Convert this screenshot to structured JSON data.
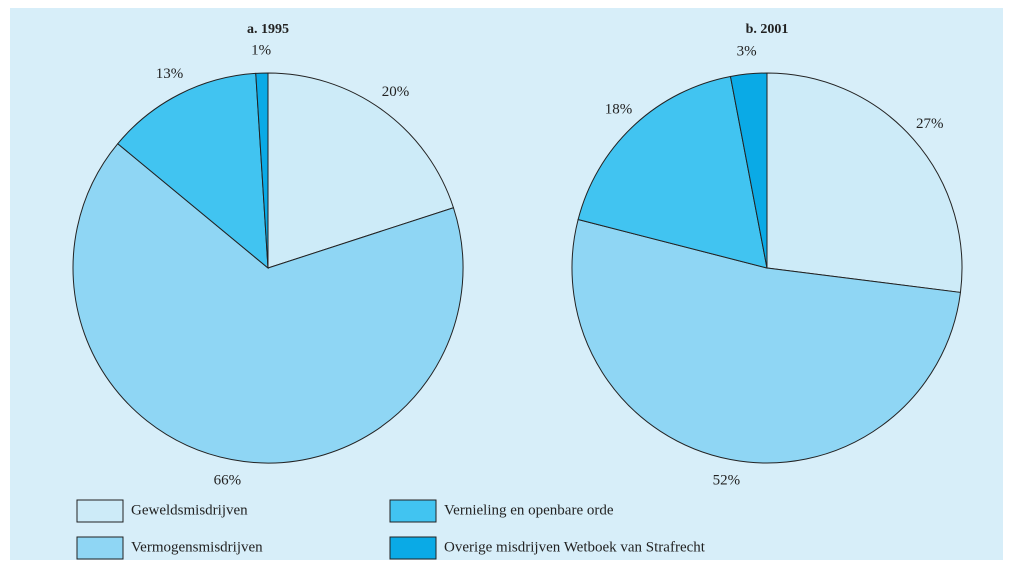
{
  "chart_data": [
    {
      "type": "pie",
      "title": "a.  1995",
      "categories": [
        "Geweldsmisdrijven",
        "Vermogensmisdrijven",
        "Vernieling en openbare orde",
        "Overige misdrijven Wetboek van Strafrecht"
      ],
      "values": [
        20,
        66,
        13,
        1
      ],
      "value_labels": [
        "20%",
        "66%",
        "13%",
        "1%"
      ],
      "colors": [
        "#cdebf8",
        "#8fd6f4",
        "#41c4f1",
        "#0aaae6"
      ]
    },
    {
      "type": "pie",
      "title": "b.  2001",
      "categories": [
        "Geweldsmisdrijven",
        "Vermogensmisdrijven",
        "Vernieling en openbare orde",
        "Overige misdrijven Wetboek van Strafrecht"
      ],
      "values": [
        27,
        52,
        18,
        3
      ],
      "value_labels": [
        "27%",
        "52%",
        "18%",
        "3%"
      ],
      "colors": [
        "#cdebf8",
        "#8fd6f4",
        "#41c4f1",
        "#0aaae6"
      ]
    }
  ]
}
